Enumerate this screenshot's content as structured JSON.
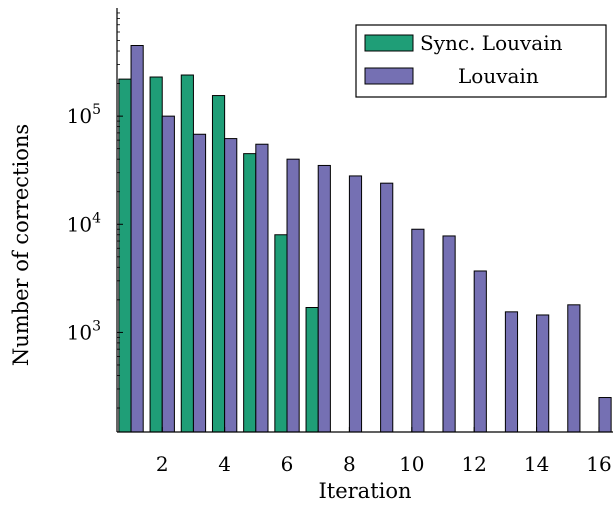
{
  "chart_data": {
    "type": "bar",
    "xlabel": "Iteration",
    "ylabel": "Number of corrections",
    "yscale": "log",
    "ylim": [
      120,
      1000000
    ],
    "xlim": [
      0.55,
      16.45
    ],
    "xticks": [
      2,
      4,
      6,
      8,
      10,
      12,
      14,
      16
    ],
    "yticks": [
      {
        "value": 1000,
        "base": "10",
        "exp": "3"
      },
      {
        "value": 10000,
        "base": "10",
        "exp": "4"
      },
      {
        "value": 100000,
        "base": "10",
        "exp": "5"
      }
    ],
    "legend_position": "top-right",
    "x": [
      1,
      2,
      3,
      4,
      5,
      6,
      7,
      8,
      9,
      10,
      11,
      12,
      13,
      14,
      15,
      16
    ],
    "series": [
      {
        "name": "Sync. Louvain",
        "color": "#1f9e77",
        "values": [
          220000,
          230000,
          240000,
          155000,
          45000,
          8000,
          1700,
          null,
          null,
          null,
          null,
          null,
          null,
          null,
          null,
          null
        ]
      },
      {
        "name": "Louvain",
        "color": "#7570b3",
        "values": [
          450000,
          100000,
          68000,
          62000,
          55000,
          40000,
          35000,
          28000,
          24000,
          9000,
          7800,
          3700,
          1550,
          1450,
          1800,
          250
        ]
      }
    ]
  }
}
